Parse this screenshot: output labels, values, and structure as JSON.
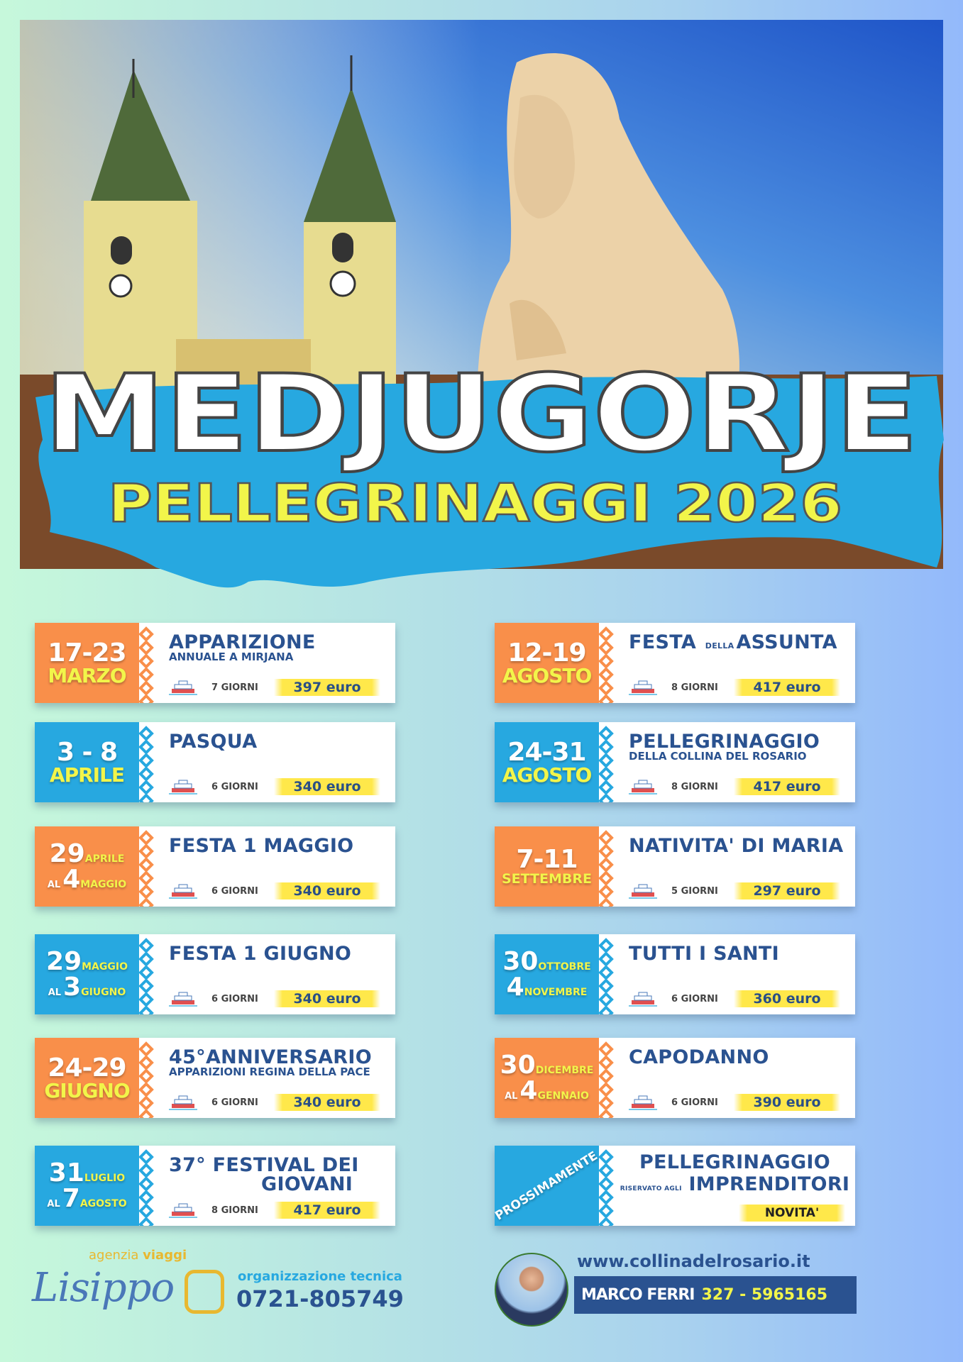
{
  "header": {
    "title": "MEDJUGORJE",
    "subtitle": "PELLEGRINAGGI  2026"
  },
  "colors": {
    "orange": "#f98f4a",
    "blue": "#27a8e0",
    "navy": "#2a5290",
    "yellow": "#f2f54a",
    "highlight": "#ffe84a"
  },
  "trips_left": [
    {
      "color": "orange",
      "date": [
        [
          {
            "t": "17-23",
            "r": "range"
          }
        ],
        [
          {
            "t": "MARZO",
            "r": "month"
          }
        ]
      ],
      "title": [
        {
          "t": "APPARIZIONE",
          "r": "main"
        }
      ],
      "subtitle": "ANNUALE A MIRJANA",
      "days": "7 GIORNI",
      "price": "397 euro"
    },
    {
      "color": "blue",
      "date": [
        [
          {
            "t": "3 - 8",
            "r": "range"
          }
        ],
        [
          {
            "t": "APRILE",
            "r": "month"
          }
        ]
      ],
      "title": [
        {
          "t": "PASQUA",
          "r": "main"
        }
      ],
      "subtitle": "",
      "days": "6 GIORNI",
      "price": "340 euro"
    },
    {
      "color": "orange",
      "date": [
        [
          {
            "t": "29",
            "r": "num"
          },
          {
            "t": "APRILE",
            "r": "msmall"
          }
        ],
        [
          {
            "t": "AL",
            "r": "al"
          },
          {
            "t": "4",
            "r": "num"
          },
          {
            "t": "MAGGIO",
            "r": "msmall"
          }
        ]
      ],
      "title": [
        {
          "t": "FESTA  1 MAGGIO",
          "r": "main"
        }
      ],
      "subtitle": "",
      "days": "6 GIORNI",
      "price": "340 euro"
    },
    {
      "color": "blue",
      "date": [
        [
          {
            "t": "29",
            "r": "num"
          },
          {
            "t": "MAGGIO",
            "r": "msmall"
          }
        ],
        [
          {
            "t": "AL",
            "r": "al"
          },
          {
            "t": "3",
            "r": "num"
          },
          {
            "t": "GIUGNO",
            "r": "msmall"
          }
        ]
      ],
      "title": [
        {
          "t": "FESTA  1 GIUGNO",
          "r": "main"
        }
      ],
      "subtitle": "",
      "days": "6 GIORNI",
      "price": "340 euro"
    },
    {
      "color": "orange",
      "date": [
        [
          {
            "t": "24-29",
            "r": "range"
          }
        ],
        [
          {
            "t": "GIUGNO",
            "r": "month"
          }
        ]
      ],
      "title": [
        {
          "t": "45°ANNIVERSARIO",
          "r": "main"
        }
      ],
      "subtitle": "APPARIZIONI  REGINA DELLA PACE",
      "days": "6 GIORNI",
      "price": "340 euro"
    },
    {
      "color": "blue",
      "date": [
        [
          {
            "t": "31",
            "r": "num"
          },
          {
            "t": "LUGLIO",
            "r": "msmall"
          }
        ],
        [
          {
            "t": "AL",
            "r": "al"
          },
          {
            "t": "7",
            "r": "num"
          },
          {
            "t": "AGOSTO",
            "r": "msmall"
          }
        ]
      ],
      "title": [
        {
          "t": "37° FESTIVAL DEI",
          "r": "main"
        }
      ],
      "title2": "GIOVANI",
      "subtitle": "",
      "days": "8 GIORNI",
      "price": "417 euro"
    }
  ],
  "trips_right": [
    {
      "color": "orange",
      "date": [
        [
          {
            "t": "12-19",
            "r": "range"
          }
        ],
        [
          {
            "t": "AGOSTO",
            "r": "month"
          }
        ]
      ],
      "title": [
        {
          "t": "FESTA",
          "r": "main"
        },
        {
          "t": "DELLA",
          "r": "small"
        },
        {
          "t": "ASSUNTA",
          "r": "main"
        }
      ],
      "subtitle": "",
      "days": "8 GIORNI",
      "price": "417 euro"
    },
    {
      "color": "blue",
      "date": [
        [
          {
            "t": "24-31",
            "r": "range"
          }
        ],
        [
          {
            "t": "AGOSTO",
            "r": "month"
          }
        ]
      ],
      "title": [
        {
          "t": "PELLEGRINAGGIO",
          "r": "main"
        }
      ],
      "subtitle": "DELLA COLLINA DEL ROSARIO",
      "days": "8 GIORNI",
      "price": "417 euro"
    },
    {
      "color": "orange",
      "date": [
        [
          {
            "t": "7-11",
            "r": "range"
          }
        ],
        [
          {
            "t": "SETTEMBRE",
            "r": "month-m"
          }
        ]
      ],
      "title": [
        {
          "t": "NATIVITA' DI MARIA",
          "r": "main"
        }
      ],
      "subtitle": "",
      "days": "5 GIORNI",
      "price": "297 euro"
    },
    {
      "color": "blue",
      "date": [
        [
          {
            "t": "30",
            "r": "num"
          },
          {
            "t": "OTTOBRE",
            "r": "msmall"
          }
        ],
        [
          {
            "t": "4",
            "r": "num"
          },
          {
            "t": "NOVEMBRE",
            "r": "msmall"
          }
        ]
      ],
      "title": [
        {
          "t": "TUTTI  I  SANTI",
          "r": "main"
        }
      ],
      "subtitle": "",
      "days": "6 GIORNI",
      "price": "360 euro"
    },
    {
      "color": "orange",
      "date": [
        [
          {
            "t": "30",
            "r": "num"
          },
          {
            "t": "DICEMBRE",
            "r": "msmall"
          }
        ],
        [
          {
            "t": "AL",
            "r": "al"
          },
          {
            "t": "4",
            "r": "num"
          },
          {
            "t": "GENNAIO",
            "r": "msmall"
          }
        ]
      ],
      "title": [
        {
          "t": "CAPODANNO",
          "r": "main"
        }
      ],
      "subtitle": "",
      "days": "6 GIORNI",
      "price": "390 euro"
    }
  ],
  "coming_soon": {
    "badge": "PROSSIMAMENTE",
    "title": "PELLEGRINAGGIO",
    "small": "RISERVATO AGLI",
    "title2": "IMPRENDITORI",
    "tag": "NOVITA'"
  },
  "footer": {
    "agency_small": "agenzia ",
    "agency_bold": "viaggi",
    "logo": "Lisippo",
    "org_label": "organizzazione tecnica",
    "org_phone": "0721-805749",
    "website": "www.collinadelrosario.it",
    "contact_name": "MARCO FERRI",
    "contact_phone": "327 - 5965165"
  }
}
